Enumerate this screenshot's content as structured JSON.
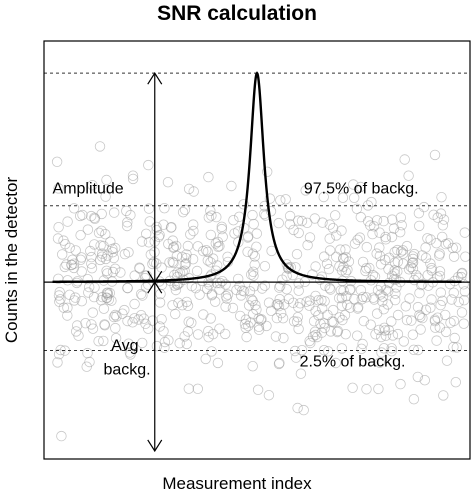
{
  "chart_data": {
    "type": "scatter",
    "title": "SNR calculation",
    "xlabel": "Measurement index",
    "ylabel": "Counts in the detector",
    "xlim": [
      0,
      1000
    ],
    "ylim": [
      -2.2,
      3.0
    ],
    "axis_ticks": "none",
    "grid": false,
    "legend": "none",
    "background": {
      "description": "noisy background counts shown as open circles",
      "n_points": 700,
      "mean": 0.0,
      "sd": 0.55,
      "x_range": [
        30,
        990
      ]
    },
    "peak": {
      "center_x": 500,
      "baseline": 0.0,
      "height": 2.6,
      "shape": "lorentzian",
      "half_width": 20
    },
    "reference_lines": [
      {
        "name": "Avg. backg.",
        "y": 0.0,
        "style": "solid"
      },
      {
        "name": "97.5% of backg.",
        "y": 0.95,
        "style": "dashed"
      },
      {
        "name": "2.5% of backg.",
        "y": -0.85,
        "style": "dashed"
      },
      {
        "name": "peak top",
        "y": 2.6,
        "style": "dashed"
      }
    ],
    "arrows": [
      {
        "name": "Amplitude",
        "x": 260,
        "from_y": 0.0,
        "to_y": 2.6
      },
      {
        "name": "Avg. backg.",
        "x": 260,
        "from_y": 0.0,
        "to_y": -2.1
      }
    ],
    "annotations": [
      {
        "text": "Amplitude",
        "x": 20,
        "y": 1.1,
        "anchor": "start"
      },
      {
        "text": "97.5% of backg.",
        "x": 610,
        "y": 1.1,
        "anchor": "start"
      },
      {
        "text": "Avg.",
        "x": 195,
        "y": -0.85,
        "anchor": "middle"
      },
      {
        "text": "backg.",
        "x": 195,
        "y": -1.15,
        "anchor": "middle"
      },
      {
        "text": "2.5% of backg.",
        "x": 600,
        "y": -1.05,
        "anchor": "start"
      }
    ],
    "colors": {
      "points": "#9a9a9a",
      "peak_line": "#000000",
      "reference_lines": "#333333"
    }
  }
}
